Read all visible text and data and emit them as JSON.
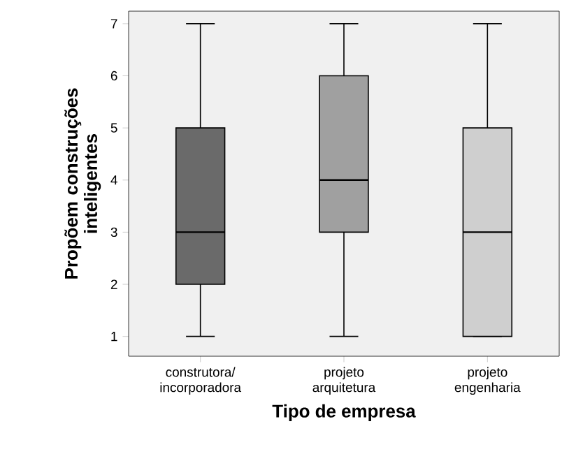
{
  "chart_data": {
    "type": "box",
    "xlabel": "Tipo de empresa",
    "ylabel": "Propõem construções inteligentes",
    "categories": [
      "construtora/ incorporadora",
      "projeto arquitetura",
      "projeto engenharia"
    ],
    "boxes": [
      {
        "low": 1,
        "q1": 2,
        "median": 3,
        "q3": 5,
        "high": 7
      },
      {
        "low": 1,
        "q1": 3,
        "median": 4,
        "q3": 6,
        "high": 7
      },
      {
        "low": 1,
        "q1": 1,
        "median": 3,
        "q3": 5,
        "high": 7
      }
    ],
    "colors": [
      "#6a6a6a",
      "#a0a0a0",
      "#cfcfcf"
    ],
    "ylim": [
      0.62,
      7.24
    ],
    "yticks": [
      1,
      2,
      3,
      4,
      5,
      6,
      7
    ],
    "grid": false
  }
}
